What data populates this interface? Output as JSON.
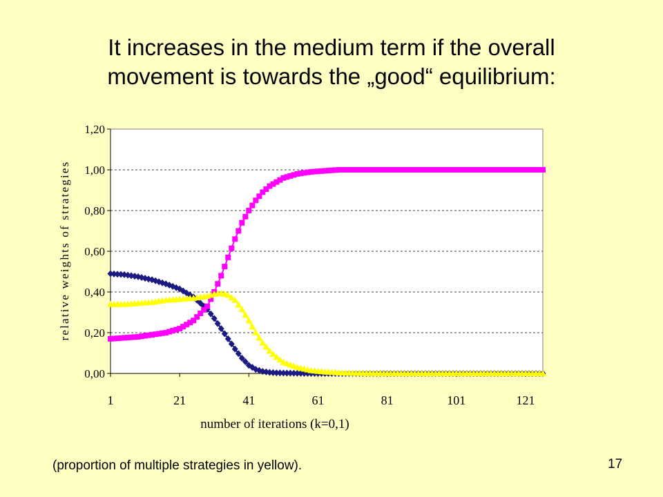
{
  "slide": {
    "title_line1": "It increases in the medium term if the overall",
    "title_line2": "movement is towards the „good“ equilibrium:",
    "caption": "(proportion of multiple strategies in yellow).",
    "page_number": "17"
  },
  "colors": {
    "background": "#ffffc4",
    "plot_background": "#ffffff",
    "blue": "#1a1a80",
    "magenta": "#ff00ff",
    "yellow": "#ffff00"
  },
  "chart_data": {
    "type": "line",
    "xlabel": "number of iterations (k=0,1)",
    "ylabel": "relative weights of strategies",
    "xlim": [
      1,
      126
    ],
    "ylim": [
      0,
      1.2
    ],
    "x_ticks": [
      "1",
      "21",
      "41",
      "61",
      "81",
      "101",
      "121"
    ],
    "x_tick_values": [
      1,
      21,
      41,
      61,
      81,
      101,
      121
    ],
    "y_ticks": [
      "0,00",
      "0,20",
      "0,40",
      "0,60",
      "0,80",
      "1,00",
      "1,20"
    ],
    "y_tick_values": [
      0,
      0.2,
      0.4,
      0.6,
      0.8,
      1.0,
      1.2
    ],
    "grid": "horizontal dashed",
    "x": [
      1,
      5,
      9,
      13,
      17,
      21,
      25,
      29,
      31,
      33,
      35,
      37,
      39,
      41,
      43,
      45,
      47,
      49,
      51,
      55,
      59,
      63,
      67,
      71,
      75,
      81,
      91,
      101,
      111,
      121,
      126
    ],
    "series": [
      {
        "color": "#1a1a80",
        "marker": "diamond",
        "values": [
          0.49,
          0.485,
          0.475,
          0.46,
          0.44,
          0.415,
          0.375,
          0.315,
          0.27,
          0.22,
          0.17,
          0.12,
          0.075,
          0.04,
          0.02,
          0.01,
          0.005,
          0.003,
          0.002,
          0.001,
          0.0,
          0.0,
          0.0,
          0.0,
          0.0,
          0.0,
          0.0,
          0.0,
          0.0,
          0.0,
          0.0
        ]
      },
      {
        "color": "#ff00ff",
        "marker": "square",
        "values": [
          0.17,
          0.175,
          0.18,
          0.19,
          0.2,
          0.22,
          0.26,
          0.33,
          0.4,
          0.48,
          0.57,
          0.66,
          0.74,
          0.8,
          0.85,
          0.89,
          0.92,
          0.94,
          0.96,
          0.98,
          0.99,
          0.995,
          1.0,
          1.0,
          1.0,
          1.0,
          1.0,
          1.0,
          1.0,
          1.0,
          1.0
        ]
      },
      {
        "color": "#ffff00",
        "marker": "triangle",
        "values": [
          0.34,
          0.34,
          0.345,
          0.35,
          0.36,
          0.365,
          0.37,
          0.38,
          0.39,
          0.395,
          0.385,
          0.36,
          0.315,
          0.26,
          0.2,
          0.15,
          0.11,
          0.08,
          0.055,
          0.03,
          0.015,
          0.008,
          0.004,
          0.002,
          0.001,
          0.0,
          0.0,
          0.0,
          0.0,
          0.0,
          0.0
        ]
      }
    ]
  }
}
